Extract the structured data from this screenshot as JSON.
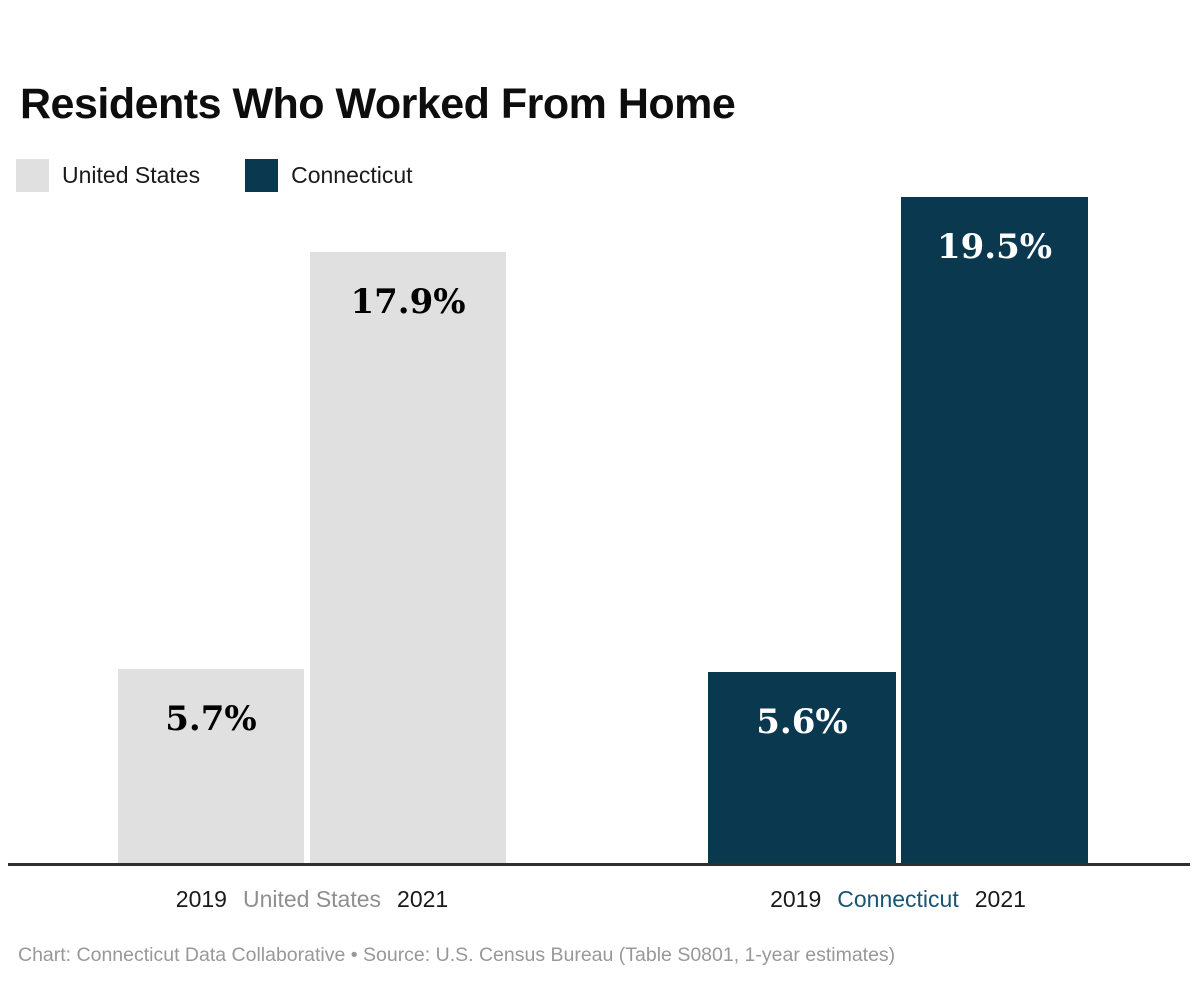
{
  "colors": {
    "us_series": "#e0e0e0",
    "ct_series": "#0a384f",
    "axis_line": "#2f2f2f",
    "label_on_light": "#000000",
    "label_on_dark": "#ffffff",
    "axis_year_text": "#1a1a1a",
    "us_group_label": "#8f8f8f",
    "ct_group_label": "#175672",
    "footer_text": "#989898"
  },
  "header": {
    "title": "Residents Who Worked From Home"
  },
  "legend": {
    "items": [
      {
        "label": "United States",
        "color_key": "us_series"
      },
      {
        "label": "Connecticut",
        "color_key": "ct_series"
      }
    ]
  },
  "chart_data": {
    "type": "bar",
    "title": "Residents Who Worked From Home",
    "categories": [
      "2019",
      "2021"
    ],
    "series": [
      {
        "name": "United States",
        "values": [
          5.7,
          17.9
        ],
        "labels": [
          "5.7%",
          "17.9%"
        ],
        "color": "#e0e0e0",
        "label_color": "#000000"
      },
      {
        "name": "Connecticut",
        "values": [
          5.6,
          19.5
        ],
        "labels": [
          "5.6%",
          "19.5%"
        ],
        "color": "#0a384f",
        "label_color": "#ffffff"
      }
    ],
    "ylim": [
      0,
      19.5
    ],
    "grid": false,
    "axis_labels_hidden": true,
    "legend_position": "top-left",
    "value_suffix": "%"
  },
  "x_axis": {
    "groups": [
      {
        "left_year": "2019",
        "name": "United States",
        "right_year": "2021",
        "name_color_key": "us_group_label"
      },
      {
        "left_year": "2019",
        "name": "Connecticut",
        "right_year": "2021",
        "name_color_key": "ct_group_label"
      }
    ]
  },
  "footer": {
    "credit": "Chart: Connecticut Data Collaborative • Source: U.S. Census Bureau (Table S0801, 1-year estimates)"
  }
}
